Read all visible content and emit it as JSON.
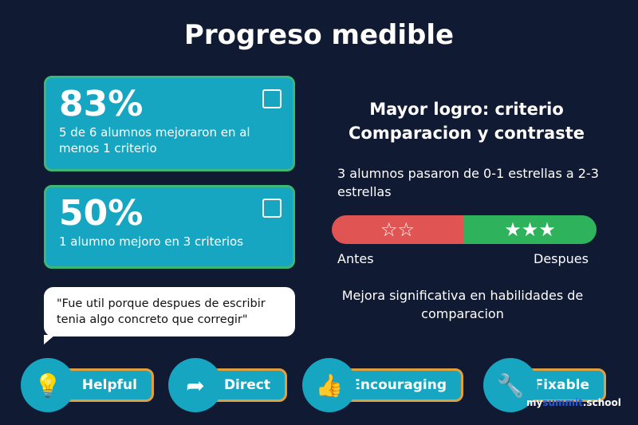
{
  "title": "Progreso medible",
  "stats": [
    {
      "value": "83%",
      "text": "5 de 6 alumnos mejoraron en al menos 1 criterio",
      "icon": "chart-icon"
    },
    {
      "value": "50%",
      "text": "1 alumno mejoro en 3 criterios",
      "icon": "chart-icon"
    }
  ],
  "quote": "\"Fue util porque despues de escribir tenia algo concreto que corregir\"",
  "right": {
    "heading1": "Mayor logro: criterio",
    "heading2": "Comparacion y contraste",
    "detail": "3 alumnos pasaron de 0-1 estrellas a 2-3 estrellas",
    "before_stars": "☆☆",
    "after_stars": "★★★",
    "before_label": "Antes",
    "after_label": "Despues",
    "conclusion": "Mejora significativa en habilidades de comparacion",
    "colors": {
      "before": "#e05454",
      "after": "#2eb25c"
    }
  },
  "badges": [
    {
      "label": "Helpful",
      "icon": "lightbulb-icon",
      "glyph": "💡"
    },
    {
      "label": "Direct",
      "icon": "arrow-icon",
      "glyph": "➦"
    },
    {
      "label": "Encouraging",
      "icon": "thumbs-up-icon",
      "glyph": "👍"
    },
    {
      "label": "Fixable",
      "icon": "wrench-icon",
      "glyph": "🔧"
    }
  ],
  "watermark": {
    "a": "my",
    "b": "summit",
    "c": ".school"
  }
}
